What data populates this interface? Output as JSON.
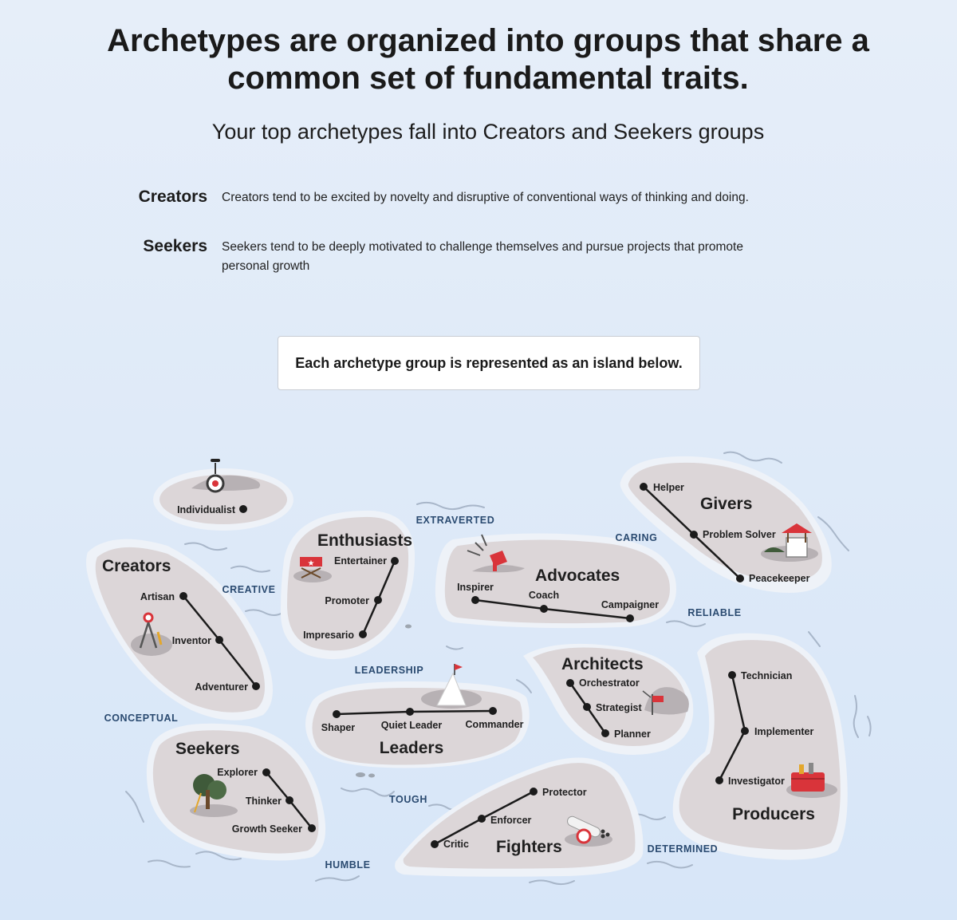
{
  "header": {
    "headline": "Archetypes are organized into groups that share a common set of fundamental traits.",
    "subhead": "Your top archetypes fall into Creators and Seekers groups"
  },
  "groups": [
    {
      "name": "Creators",
      "description": "Creators tend to be excited by novelty and disruptive of conventional ways of thinking and doing."
    },
    {
      "name": "Seekers",
      "description": "Seekers tend to be deeply motivated to challenge themselves and pursue projects that promote personal growth"
    }
  ],
  "notice": "Each archetype group is represented as an island below.",
  "map": {
    "islands": {
      "individualist": {
        "archetypes": [
          "Individualist"
        ],
        "icon": "unicycle-icon"
      },
      "creators": {
        "title": "Creators",
        "archetypes": [
          "Artisan",
          "Inventor",
          "Adventurer"
        ],
        "icon": "compass-icon"
      },
      "enthusiasts": {
        "title": "Enthusiasts",
        "archetypes": [
          "Entertainer",
          "Promoter",
          "Impresario"
        ],
        "icon": "directors-chair-icon"
      },
      "advocates": {
        "title": "Advocates",
        "archetypes": [
          "Inspirer",
          "Coach",
          "Campaigner"
        ],
        "icon": "megaphone-icon"
      },
      "givers": {
        "title": "Givers",
        "archetypes": [
          "Helper",
          "Problem Solver",
          "Peacekeeper"
        ],
        "icon": "wishing-well-icon"
      },
      "leaders": {
        "title": "Leaders",
        "archetypes": [
          "Shaper",
          "Quiet Leader",
          "Commander"
        ],
        "icon": "summit-flag-icon"
      },
      "architects": {
        "title": "Architects",
        "archetypes": [
          "Orchestrator",
          "Strategist",
          "Planner"
        ],
        "icon": "signpost-icon"
      },
      "producers": {
        "title": "Producers",
        "archetypes": [
          "Technician",
          "Implementer",
          "Investigator"
        ],
        "icon": "toolbox-icon"
      },
      "seekers": {
        "title": "Seekers",
        "archetypes": [
          "Explorer",
          "Thinker",
          "Growth Seeker"
        ],
        "icon": "treehouse-icon"
      },
      "fighters": {
        "title": "Fighters",
        "archetypes": [
          "Protector",
          "Enforcer",
          "Critic"
        ],
        "icon": "cannon-icon"
      }
    },
    "traits": [
      "EXTRAVERTED",
      "CARING",
      "CREATIVE",
      "RELIABLE",
      "LEADERSHIP",
      "CONCEPTUAL",
      "TOUGH",
      "HUMBLE",
      "DETERMINED"
    ],
    "colors": {
      "island": "#dcd6d8",
      "rim": "#eef2f8",
      "trait_text": "#2a4a70",
      "route": "#1b1b1b",
      "accent_red": "#d9343a"
    }
  }
}
